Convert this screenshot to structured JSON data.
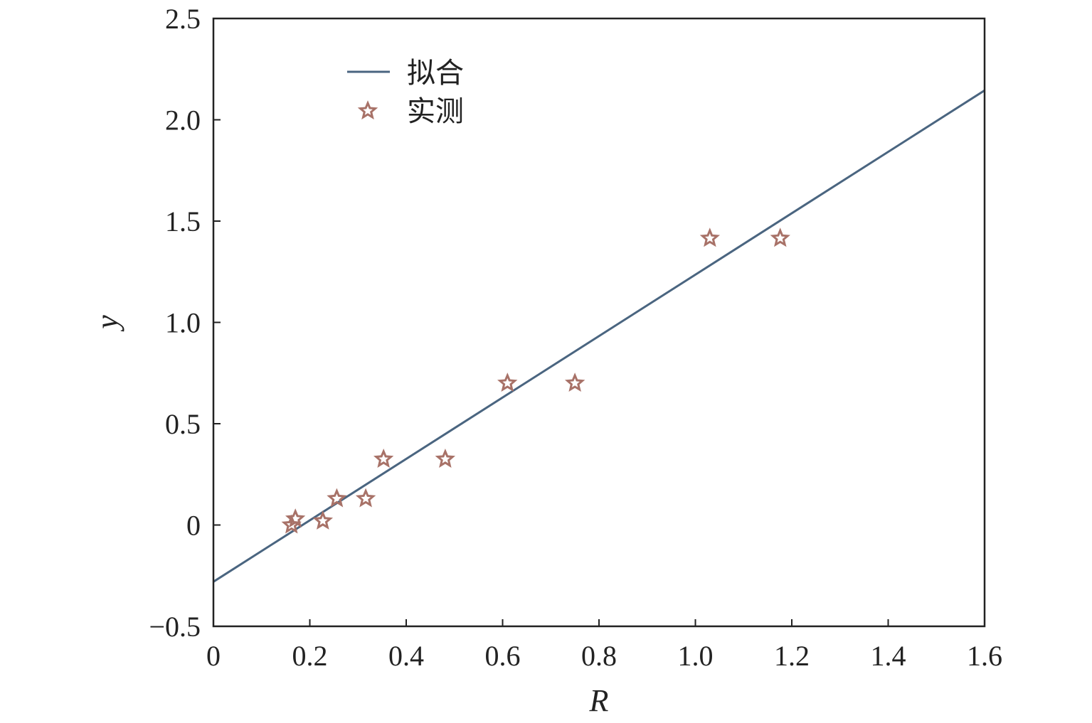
{
  "chart_data": {
    "type": "scatter",
    "title": "",
    "xlabel": "R",
    "ylabel": "y",
    "xlim": [
      0,
      1.6
    ],
    "ylim": [
      -0.5,
      2.5
    ],
    "xticks": [
      0,
      0.2,
      0.4,
      0.6,
      0.8,
      1.0,
      1.2,
      1.4,
      1.6
    ],
    "xtick_labels": [
      "0",
      "0.2",
      "0.4",
      "0.6",
      "0.8",
      "1.0",
      "1.2",
      "1.4",
      "1.6"
    ],
    "yticks": [
      -0.5,
      0,
      0.5,
      1.0,
      1.5,
      2.0,
      2.5
    ],
    "ytick_labels": [
      "−0.5",
      "0",
      "0.5",
      "1.0",
      "1.5",
      "2.0",
      "2.5"
    ],
    "grid": false,
    "legend_position": "top-left",
    "series": [
      {
        "name": "拟合",
        "kind": "line",
        "color": "#4a6580",
        "x": [
          0,
          1.6
        ],
        "y": [
          -0.28,
          2.145
        ]
      },
      {
        "name": "实测",
        "kind": "scatter",
        "marker": "star-open",
        "color": "#a87268",
        "x": [
          0.162,
          0.17,
          0.227,
          0.256,
          0.316,
          0.353,
          0.481,
          0.61,
          0.75,
          1.03,
          1.176
        ],
        "y": [
          0.0,
          0.03,
          0.02,
          0.13,
          0.13,
          0.325,
          0.325,
          0.7,
          0.7,
          1.415,
          1.415
        ]
      }
    ]
  }
}
